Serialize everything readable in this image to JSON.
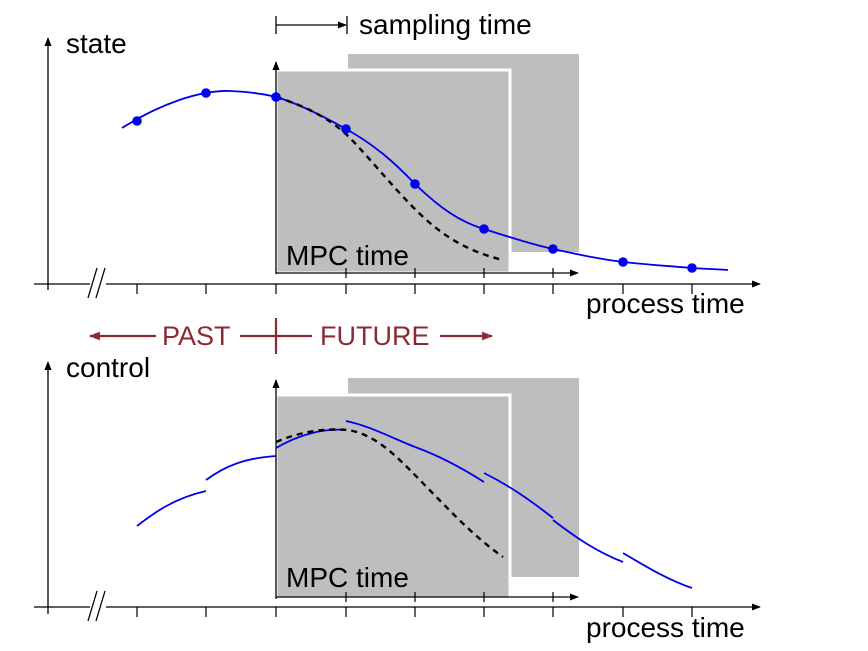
{
  "labels": {
    "sampling_time": "sampling time",
    "state_axis": "state",
    "control_axis": "control",
    "process_time_top": "process time",
    "process_time_bottom": "process time",
    "mpc_time_top": "MPC time",
    "mpc_time_bottom": "MPC time",
    "past": "PAST",
    "future": "FUTURE"
  },
  "colors": {
    "trajectory": "#0000ee",
    "markers": "#0000ee",
    "prediction": "#000000",
    "horizon_box": "#bebebe",
    "past_future": "#8b2a35",
    "axes": "#000000"
  }
}
